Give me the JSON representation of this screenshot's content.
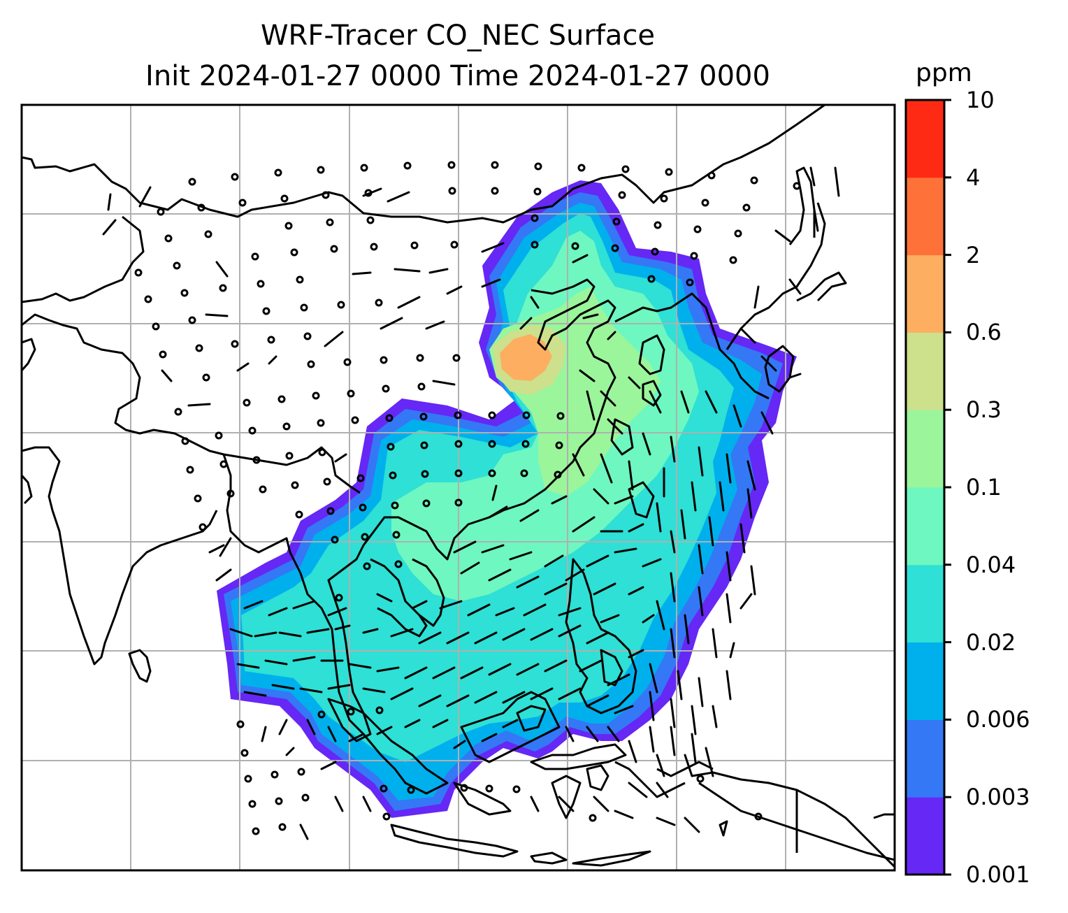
{
  "title_line1": "WRF-Tracer CO_NEC Surface",
  "title_line2": "Init 2024-01-27 0000 Time 2024-01-27 0000",
  "colorbar": {
    "unit": "ppm",
    "ticks": [
      "0.001",
      "0.003",
      "0.006",
      "0.02",
      "0.04",
      "0.1",
      "0.3",
      "0.6",
      "2",
      "4",
      "10"
    ],
    "colors": [
      "#6528f5",
      "#3478f6",
      "#00b0ec",
      "#2ee0d5",
      "#6ef7c0",
      "#9bf59b",
      "#cde08c",
      "#fdae61",
      "#fe7139",
      "#ff2a14"
    ]
  },
  "map": {
    "field": "CO_NEC surface tracer concentration",
    "overlay": "wind barbs",
    "gridlines": true
  }
}
